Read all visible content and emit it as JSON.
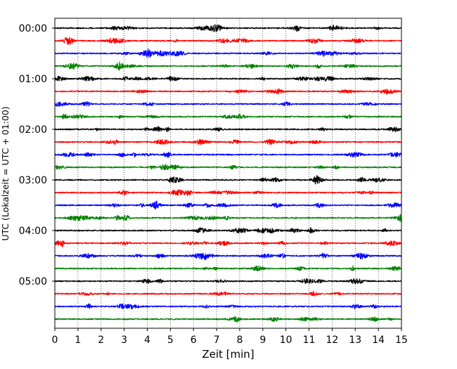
{
  "chart_data": {
    "type": "line",
    "chart_kind": "seismic helicorder (stacked 15-minute traces)",
    "xlabel": "Zeit  [min]",
    "ylabel": "UTC (Lokalzeit = UTC + 01:00)",
    "xlim": [
      0,
      15
    ],
    "x_ticks": [
      "0",
      "1",
      "2",
      "3",
      "4",
      "5",
      "6",
      "7",
      "8",
      "9",
      "10",
      "11",
      "12",
      "13",
      "14",
      "15"
    ],
    "y_ticks": [
      "00:00",
      "01:00",
      "02:00",
      "03:00",
      "04:00",
      "05:00"
    ],
    "grid": "vertical dotted lines at each minute",
    "trace_colors": [
      "#000000",
      "#ff0000",
      "#0000ff",
      "#008000"
    ],
    "series": [
      {
        "start": "00:00",
        "color": "#000000"
      },
      {
        "start": "00:15",
        "color": "#ff0000"
      },
      {
        "start": "00:30",
        "color": "#0000ff"
      },
      {
        "start": "00:45",
        "color": "#008000"
      },
      {
        "start": "01:00",
        "color": "#000000"
      },
      {
        "start": "01:15",
        "color": "#ff0000"
      },
      {
        "start": "01:30",
        "color": "#0000ff"
      },
      {
        "start": "01:45",
        "color": "#008000"
      },
      {
        "start": "02:00",
        "color": "#000000"
      },
      {
        "start": "02:15",
        "color": "#ff0000"
      },
      {
        "start": "02:30",
        "color": "#0000ff"
      },
      {
        "start": "02:45",
        "color": "#008000"
      },
      {
        "start": "03:00",
        "color": "#000000"
      },
      {
        "start": "03:15",
        "color": "#ff0000"
      },
      {
        "start": "03:30",
        "color": "#0000ff"
      },
      {
        "start": "03:45",
        "color": "#008000"
      },
      {
        "start": "04:00",
        "color": "#000000"
      },
      {
        "start": "04:15",
        "color": "#ff0000"
      },
      {
        "start": "04:30",
        "color": "#0000ff"
      },
      {
        "start": "04:45",
        "color": "#008000"
      },
      {
        "start": "05:00",
        "color": "#000000"
      },
      {
        "start": "05:15",
        "color": "#ff0000"
      },
      {
        "start": "05:30",
        "color": "#0000ff"
      },
      {
        "start": "05:45",
        "color": "#008000"
      }
    ]
  }
}
